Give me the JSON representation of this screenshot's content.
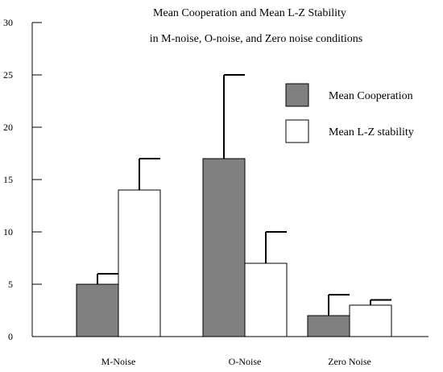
{
  "chart_data": {
    "type": "bar",
    "title_lines": [
      "Mean Cooperation and Mean L-Z Stability",
      "in M-noise, O-noise, and Zero noise conditions"
    ],
    "categories": [
      "M-Noise",
      "O-Noise",
      "Zero Noise"
    ],
    "series": [
      {
        "name": "Mean Cooperation",
        "values": [
          5,
          17,
          2
        ],
        "error_upper": [
          6,
          25,
          4
        ],
        "color": "#808080"
      },
      {
        "name": "Mean  L-Z stability",
        "values": [
          14,
          7,
          3
        ],
        "error_upper": [
          17,
          10,
          3.5
        ],
        "color": "#ffffff"
      }
    ],
    "ylim": [
      0,
      30
    ],
    "yticks": [
      0,
      5,
      10,
      15,
      20,
      25,
      30
    ],
    "xlabel": "",
    "ylabel": "",
    "grid": false,
    "legend": "top-right",
    "bar_edge_color": "#000000"
  }
}
